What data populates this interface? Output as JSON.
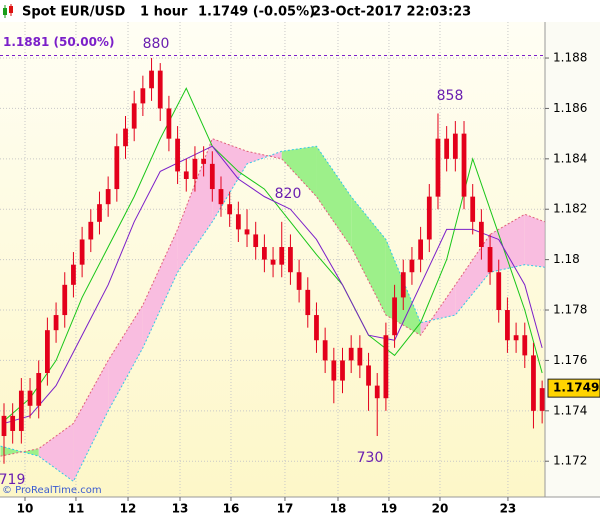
{
  "header": {
    "symbol": "Spot EUR/USD",
    "timeframe": "1 hour",
    "quote": "1.1749 (-0.05%)",
    "timestamp": "23-Oct-2017 22:03:23"
  },
  "chart_data": {
    "type": "candlestick",
    "x": [
      0,
      1,
      2,
      3,
      4,
      5,
      6,
      7,
      8,
      9,
      10,
      11,
      12,
      13,
      14,
      15,
      16,
      17,
      18,
      19,
      20,
      21,
      22,
      23,
      24,
      25,
      26,
      27,
      28,
      29,
      30,
      31,
      32,
      33,
      34,
      35,
      36,
      37,
      38,
      39,
      40,
      41,
      42,
      43,
      44,
      45,
      46,
      47,
      48,
      49,
      50,
      51,
      52,
      53,
      54,
      55,
      56,
      57,
      58,
      59,
      60,
      61,
      62
    ],
    "open": [
      1.173,
      1.1738,
      1.1732,
      1.1748,
      1.1742,
      1.1755,
      1.1772,
      1.1778,
      1.179,
      1.1798,
      1.1808,
      1.1815,
      1.1822,
      1.1828,
      1.1845,
      1.1852,
      1.1862,
      1.1868,
      1.1875,
      1.186,
      1.1848,
      1.1835,
      1.1832,
      1.184,
      1.1838,
      1.1828,
      1.1822,
      1.1818,
      1.1812,
      1.181,
      1.1805,
      1.18,
      1.1798,
      1.1805,
      1.1795,
      1.1788,
      1.1778,
      1.1768,
      1.176,
      1.1752,
      1.176,
      1.1765,
      1.1758,
      1.175,
      1.1745,
      1.177,
      1.1785,
      1.1795,
      1.18,
      1.1808,
      1.1825,
      1.1848,
      1.184,
      1.185,
      1.1825,
      1.1815,
      1.1805,
      1.1795,
      1.178,
      1.1768,
      1.177,
      1.1762,
      1.174
    ],
    "high": [
      1.1743,
      1.1743,
      1.1753,
      1.1753,
      1.176,
      1.1777,
      1.1783,
      1.1795,
      1.1803,
      1.1813,
      1.182,
      1.1827,
      1.1833,
      1.185,
      1.1857,
      1.1867,
      1.1873,
      1.188,
      1.1878,
      1.1865,
      1.1853,
      1.184,
      1.1845,
      1.1845,
      1.1843,
      1.1833,
      1.1827,
      1.1823,
      1.182,
      1.1815,
      1.181,
      1.1805,
      1.1815,
      1.181,
      1.18,
      1.1793,
      1.1783,
      1.1773,
      1.1765,
      1.1765,
      1.177,
      1.177,
      1.1763,
      1.1755,
      1.1775,
      1.179,
      1.18,
      1.1805,
      1.1813,
      1.183,
      1.1858,
      1.1853,
      1.1855,
      1.1855,
      1.183,
      1.182,
      1.181,
      1.18,
      1.1785,
      1.1775,
      1.1775,
      1.1767,
      1.1752
    ],
    "low": [
      1.1719,
      1.1727,
      1.1727,
      1.1737,
      1.1737,
      1.175,
      1.1767,
      1.1773,
      1.1785,
      1.1793,
      1.1803,
      1.181,
      1.1817,
      1.1823,
      1.184,
      1.1847,
      1.1857,
      1.1863,
      1.1855,
      1.1843,
      1.183,
      1.1827,
      1.1827,
      1.1833,
      1.1823,
      1.1817,
      1.1813,
      1.1807,
      1.1805,
      1.18,
      1.1795,
      1.1793,
      1.1793,
      1.179,
      1.1783,
      1.1773,
      1.1763,
      1.1755,
      1.1743,
      1.1747,
      1.1755,
      1.1753,
      1.174,
      1.173,
      1.174,
      1.1765,
      1.178,
      1.179,
      1.1795,
      1.1803,
      1.182,
      1.1835,
      1.1835,
      1.182,
      1.181,
      1.18,
      1.179,
      1.1775,
      1.1763,
      1.1763,
      1.1757,
      1.1733,
      1.1735
    ],
    "close": [
      1.1738,
      1.1732,
      1.1748,
      1.1742,
      1.1755,
      1.1772,
      1.1778,
      1.179,
      1.1798,
      1.1808,
      1.1815,
      1.1822,
      1.1828,
      1.1845,
      1.1852,
      1.1862,
      1.1868,
      1.1875,
      1.186,
      1.1848,
      1.1835,
      1.1832,
      1.184,
      1.1838,
      1.1828,
      1.1822,
      1.1818,
      1.1812,
      1.181,
      1.1805,
      1.18,
      1.1798,
      1.1805,
      1.1795,
      1.1788,
      1.1778,
      1.1768,
      1.176,
      1.1752,
      1.176,
      1.1765,
      1.1758,
      1.175,
      1.1745,
      1.177,
      1.1785,
      1.1795,
      1.18,
      1.1808,
      1.1825,
      1.1848,
      1.184,
      1.185,
      1.1825,
      1.1815,
      1.1805,
      1.1795,
      1.178,
      1.1768,
      1.177,
      1.1762,
      1.174,
      1.1749
    ],
    "candle_color": "#e3001b",
    "lines": [
      {
        "color": "#19c619",
        "x": [
          0,
          3,
          6,
          9,
          12,
          15,
          18,
          21,
          24,
          27,
          30,
          33,
          36,
          39,
          42,
          45,
          48,
          51,
          54,
          57,
          60,
          62
        ],
        "values": [
          1.1736,
          1.1745,
          1.176,
          1.1785,
          1.1805,
          1.1825,
          1.1848,
          1.1868,
          1.1845,
          1.1835,
          1.1828,
          1.1815,
          1.1802,
          1.179,
          1.177,
          1.1762,
          1.1775,
          1.18,
          1.184,
          1.181,
          1.178,
          1.1755
        ]
      },
      {
        "color": "#7b1fc9",
        "x": [
          0,
          3,
          6,
          9,
          12,
          15,
          18,
          21,
          24,
          27,
          30,
          33,
          36,
          39,
          42,
          45,
          48,
          51,
          54,
          57,
          60,
          62
        ],
        "values": [
          1.1735,
          1.1738,
          1.175,
          1.177,
          1.179,
          1.1815,
          1.1835,
          1.184,
          1.1845,
          1.1832,
          1.1825,
          1.182,
          1.1808,
          1.179,
          1.177,
          1.1768,
          1.179,
          1.1812,
          1.1812,
          1.1808,
          1.179,
          1.1765
        ]
      }
    ],
    "cloud": {
      "x": [
        -0.4,
        4,
        8,
        12,
        16,
        20,
        24,
        28,
        32,
        36,
        40,
        44,
        48,
        52,
        56,
        60,
        62.3
      ],
      "span_a": [
        1.1726,
        1.1722,
        1.1712,
        1.174,
        1.1765,
        1.1795,
        1.1815,
        1.1838,
        1.1843,
        1.1845,
        1.1825,
        1.1808,
        1.1775,
        1.1778,
        1.1795,
        1.1798,
        1.1797
      ],
      "span_b": [
        1.1722,
        1.1725,
        1.1735,
        1.176,
        1.1782,
        1.1812,
        1.1848,
        1.1843,
        1.184,
        1.1825,
        1.1805,
        1.1778,
        1.177,
        1.179,
        1.181,
        1.1818,
        1.1815
      ],
      "up_color": "#9df08a",
      "down_color": "#f9bde0",
      "span_a_color": "#33c8e6",
      "span_b_color": "#e0607a"
    },
    "level": {
      "value": 1.1881,
      "label": "1.1881 (50.00%)",
      "color": "#7b1fc9"
    },
    "annotations": [
      "880",
      "858",
      "820",
      "730",
      "719"
    ],
    "xlim": [
      -0.46,
      62.33
    ],
    "xticks": [
      {
        "value": 2.42,
        "label": "10"
      },
      {
        "value": 8.29,
        "label": "11"
      },
      {
        "value": 14.29,
        "label": "12"
      },
      {
        "value": 20.28,
        "label": "13"
      },
      {
        "value": 26.15,
        "label": "16"
      },
      {
        "value": 32.37,
        "label": "17"
      },
      {
        "value": 38.48,
        "label": "18"
      },
      {
        "value": 44.35,
        "label": "19"
      },
      {
        "value": 50.23,
        "label": "20"
      },
      {
        "value": 58.06,
        "label": "23"
      }
    ],
    "ylim": [
      1.17058,
      1.18943
    ],
    "yticks": [
      1.172,
      1.174,
      1.176,
      1.178,
      1.18,
      1.182,
      1.184,
      1.186,
      1.188
    ],
    "grid": true,
    "watermark": "© ProRealTime.com"
  }
}
